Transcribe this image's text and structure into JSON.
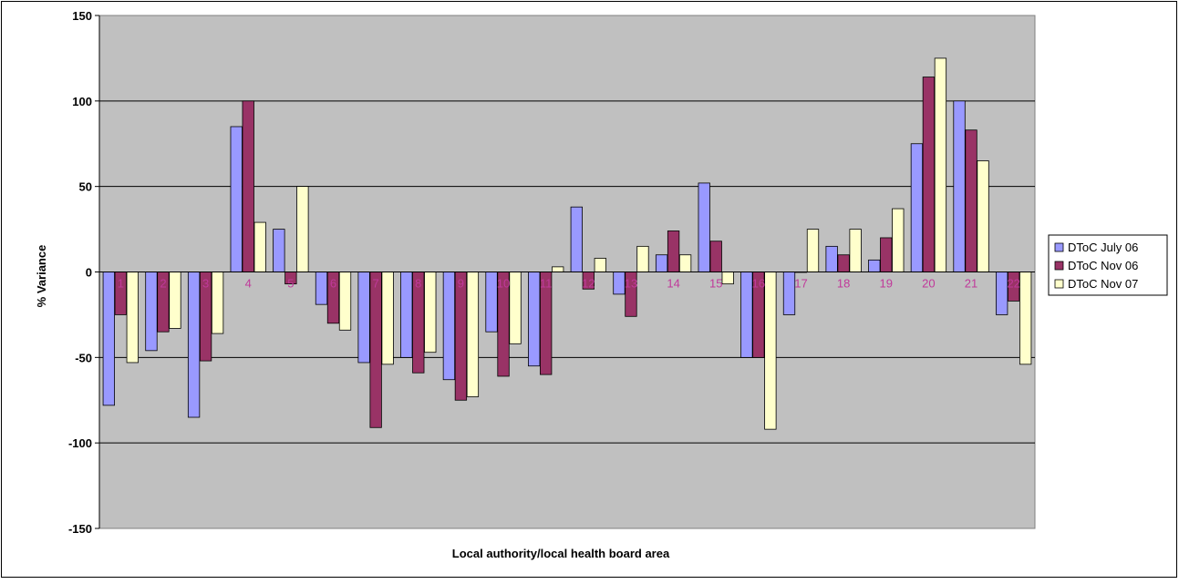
{
  "chart_data": {
    "type": "bar",
    "title": "",
    "xlabel": "Local authority/local health board area",
    "ylabel": "% Variance",
    "ylim": [
      -150,
      150
    ],
    "yticks": [
      150,
      100,
      50,
      0,
      -50,
      -100,
      -150
    ],
    "grid": true,
    "legend_position": "right",
    "categories": [
      "1",
      "2",
      "3",
      "4",
      "5",
      "6",
      "7",
      "8",
      "9",
      "10",
      "11",
      "12",
      "13",
      "14",
      "15",
      "16",
      "17",
      "18",
      "19",
      "20",
      "21",
      "22"
    ],
    "series": [
      {
        "name": "DToC July 06",
        "color": "#9999ff",
        "values": [
          -78,
          -46,
          -85,
          85,
          25,
          -19,
          -53,
          -50,
          -63,
          -35,
          -55,
          38,
          -13,
          10,
          52,
          -50,
          -25,
          15,
          7,
          75,
          100,
          -25
        ]
      },
      {
        "name": "DToC Nov 06",
        "color": "#993366",
        "values": [
          -25,
          -35,
          -52,
          100,
          -7,
          -30,
          -91,
          -59,
          -75,
          -61,
          -60,
          -10,
          -26,
          24,
          18,
          -50,
          0,
          10,
          20,
          114,
          83,
          -17
        ]
      },
      {
        "name": "DToC Nov 07",
        "color": "#ffffcc",
        "values": [
          -53,
          -33,
          -36,
          29,
          50,
          -34,
          -54,
          -47,
          -73,
          -42,
          3,
          8,
          15,
          10,
          -7,
          -92,
          25,
          25,
          37,
          125,
          65,
          -54
        ]
      }
    ]
  }
}
